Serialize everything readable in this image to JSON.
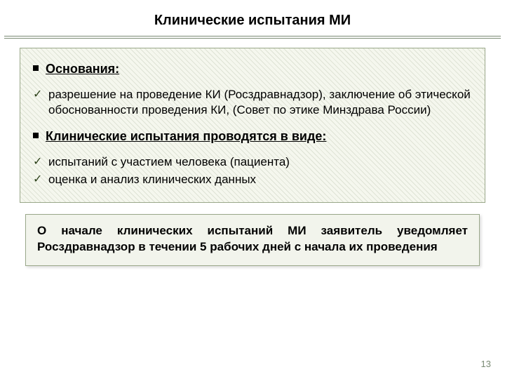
{
  "slide": {
    "title": "Клинические испытания МИ",
    "divider_color": "#7a8a74",
    "content_box": {
      "border_color": "#9aa88a",
      "bg_color": "#f5f7ee",
      "hatch_color": "rgba(120,136,100,0.18)",
      "sections": [
        {
          "bullet": "square",
          "heading": "Основания:"
        },
        {
          "bullet": "check",
          "text": "разрешение на проведение КИ (Росздравнадзор), заключение об этической обоснованности проведения КИ, (Совет по этике Минздрава России)"
        },
        {
          "bullet": "square",
          "heading": "Клинические испытания проводятся в виде:"
        },
        {
          "bullet": "check",
          "text": "испытаний с участием человека (пациента)"
        },
        {
          "bullet": "check",
          "text": "оценка и анализ клинических данных"
        }
      ]
    },
    "callout": {
      "border_color": "#9aa88a",
      "bg_color": "#f2f4ec",
      "text": "О начале клинических испытаний МИ заявитель уведомляет Росздравнадзор в течении 5 рабочих дней с начала их проведения"
    },
    "page_number": "13",
    "page_number_color": "#7a8a74",
    "fonts": {
      "title_size_pt": 15,
      "heading_size_pt": 13,
      "body_size_pt": 13,
      "pagenum_size_pt": 10
    },
    "colors": {
      "text": "#000000",
      "check": "#2b4018",
      "background": "#ffffff"
    }
  }
}
